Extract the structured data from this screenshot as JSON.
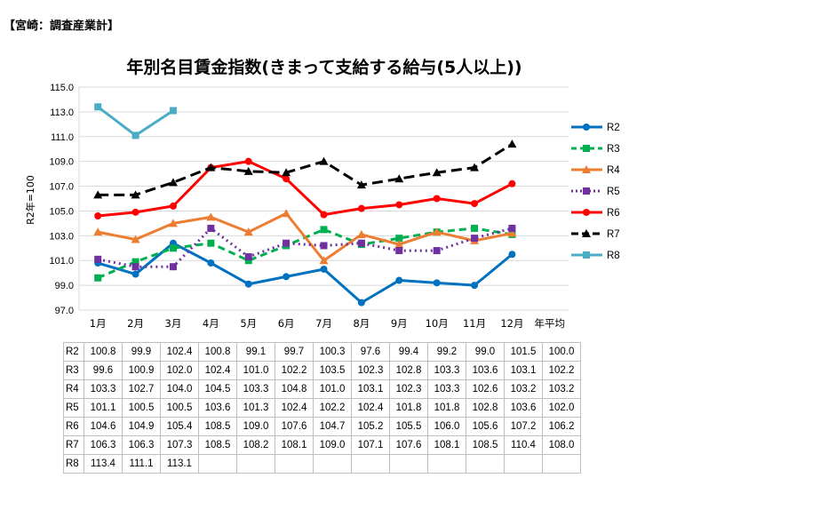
{
  "header": {
    "label": "【宮崎：調査産業計】"
  },
  "chart_data": {
    "type": "line",
    "title": "年別名目賃金指数(きまって支給する給与(5人以上))",
    "ylabel": "R2年=100",
    "xlabel": "",
    "ylim": [
      97.0,
      115.0
    ],
    "yticks": [
      "97.0",
      "99.0",
      "101.0",
      "103.0",
      "105.0",
      "107.0",
      "109.0",
      "111.0",
      "113.0",
      "115.0"
    ],
    "categories": [
      "1月",
      "2月",
      "3月",
      "4月",
      "5月",
      "6月",
      "7月",
      "8月",
      "9月",
      "10月",
      "11月",
      "12月",
      "年平均"
    ],
    "grid": true,
    "legend_position": "right",
    "series": [
      {
        "name": "R2",
        "color": "#0070C0",
        "dash": "",
        "marker": "circle",
        "values": [
          100.8,
          99.9,
          102.4,
          100.8,
          99.1,
          99.7,
          100.3,
          97.6,
          99.4,
          99.2,
          99.0,
          101.5,
          100.0
        ]
      },
      {
        "name": "R3",
        "color": "#00B050",
        "dash": "8,5",
        "marker": "square",
        "values": [
          99.6,
          100.9,
          102.0,
          102.4,
          101.0,
          102.2,
          103.5,
          102.3,
          102.8,
          103.3,
          103.6,
          103.1,
          102.2
        ]
      },
      {
        "name": "R4",
        "color": "#ED7D31",
        "dash": "",
        "marker": "triangle",
        "values": [
          103.3,
          102.7,
          104.0,
          104.5,
          103.3,
          104.8,
          101.0,
          103.1,
          102.3,
          103.3,
          102.6,
          103.2,
          103.2
        ]
      },
      {
        "name": "R5",
        "color": "#7030A0",
        "dash": "2,4",
        "marker": "square",
        "values": [
          101.1,
          100.5,
          100.5,
          103.6,
          101.3,
          102.4,
          102.2,
          102.4,
          101.8,
          101.8,
          102.8,
          103.6,
          102.0
        ]
      },
      {
        "name": "R6",
        "color": "#FF0000",
        "dash": "",
        "marker": "circle",
        "values": [
          104.6,
          104.9,
          105.4,
          108.5,
          109.0,
          107.6,
          104.7,
          105.2,
          105.5,
          106.0,
          105.6,
          107.2,
          106.2
        ]
      },
      {
        "name": "R7",
        "color": "#000000",
        "dash": "12,6",
        "marker": "triangle",
        "values": [
          106.3,
          106.3,
          107.3,
          108.5,
          108.2,
          108.1,
          109.0,
          107.1,
          107.6,
          108.1,
          108.5,
          110.4,
          108.0
        ]
      },
      {
        "name": "R8",
        "color": "#4BACC6",
        "dash": "",
        "marker": "square",
        "values": [
          113.4,
          111.1,
          113.1,
          null,
          null,
          null,
          null,
          null,
          null,
          null,
          null,
          null,
          null
        ]
      }
    ],
    "table": {
      "rows": [
        {
          "label": "R2",
          "cells": [
            "100.8",
            "99.9",
            "102.4",
            "100.8",
            "99.1",
            "99.7",
            "100.3",
            "97.6",
            "99.4",
            "99.2",
            "99.0",
            "101.5",
            "100.0"
          ]
        },
        {
          "label": "R3",
          "cells": [
            "99.6",
            "100.9",
            "102.0",
            "102.4",
            "101.0",
            "102.2",
            "103.5",
            "102.3",
            "102.8",
            "103.3",
            "103.6",
            "103.1",
            "102.2"
          ]
        },
        {
          "label": "R4",
          "cells": [
            "103.3",
            "102.7",
            "104.0",
            "104.5",
            "103.3",
            "104.8",
            "101.0",
            "103.1",
            "102.3",
            "103.3",
            "102.6",
            "103.2",
            "103.2"
          ]
        },
        {
          "label": "R5",
          "cells": [
            "101.1",
            "100.5",
            "100.5",
            "103.6",
            "101.3",
            "102.4",
            "102.2",
            "102.4",
            "101.8",
            "101.8",
            "102.8",
            "103.6",
            "102.0"
          ]
        },
        {
          "label": "R6",
          "cells": [
            "104.6",
            "104.9",
            "105.4",
            "108.5",
            "109.0",
            "107.6",
            "104.7",
            "105.2",
            "105.5",
            "106.0",
            "105.6",
            "107.2",
            "106.2"
          ]
        },
        {
          "label": "R7",
          "cells": [
            "106.3",
            "106.3",
            "107.3",
            "108.5",
            "108.2",
            "108.1",
            "109.0",
            "107.1",
            "107.6",
            "108.1",
            "108.5",
            "110.4",
            "108.0"
          ]
        },
        {
          "label": "R8",
          "cells": [
            "113.4",
            "111.1",
            "113.1",
            "",
            "",
            "",
            "",
            "",
            "",
            "",
            "",
            "",
            ""
          ]
        }
      ]
    }
  }
}
